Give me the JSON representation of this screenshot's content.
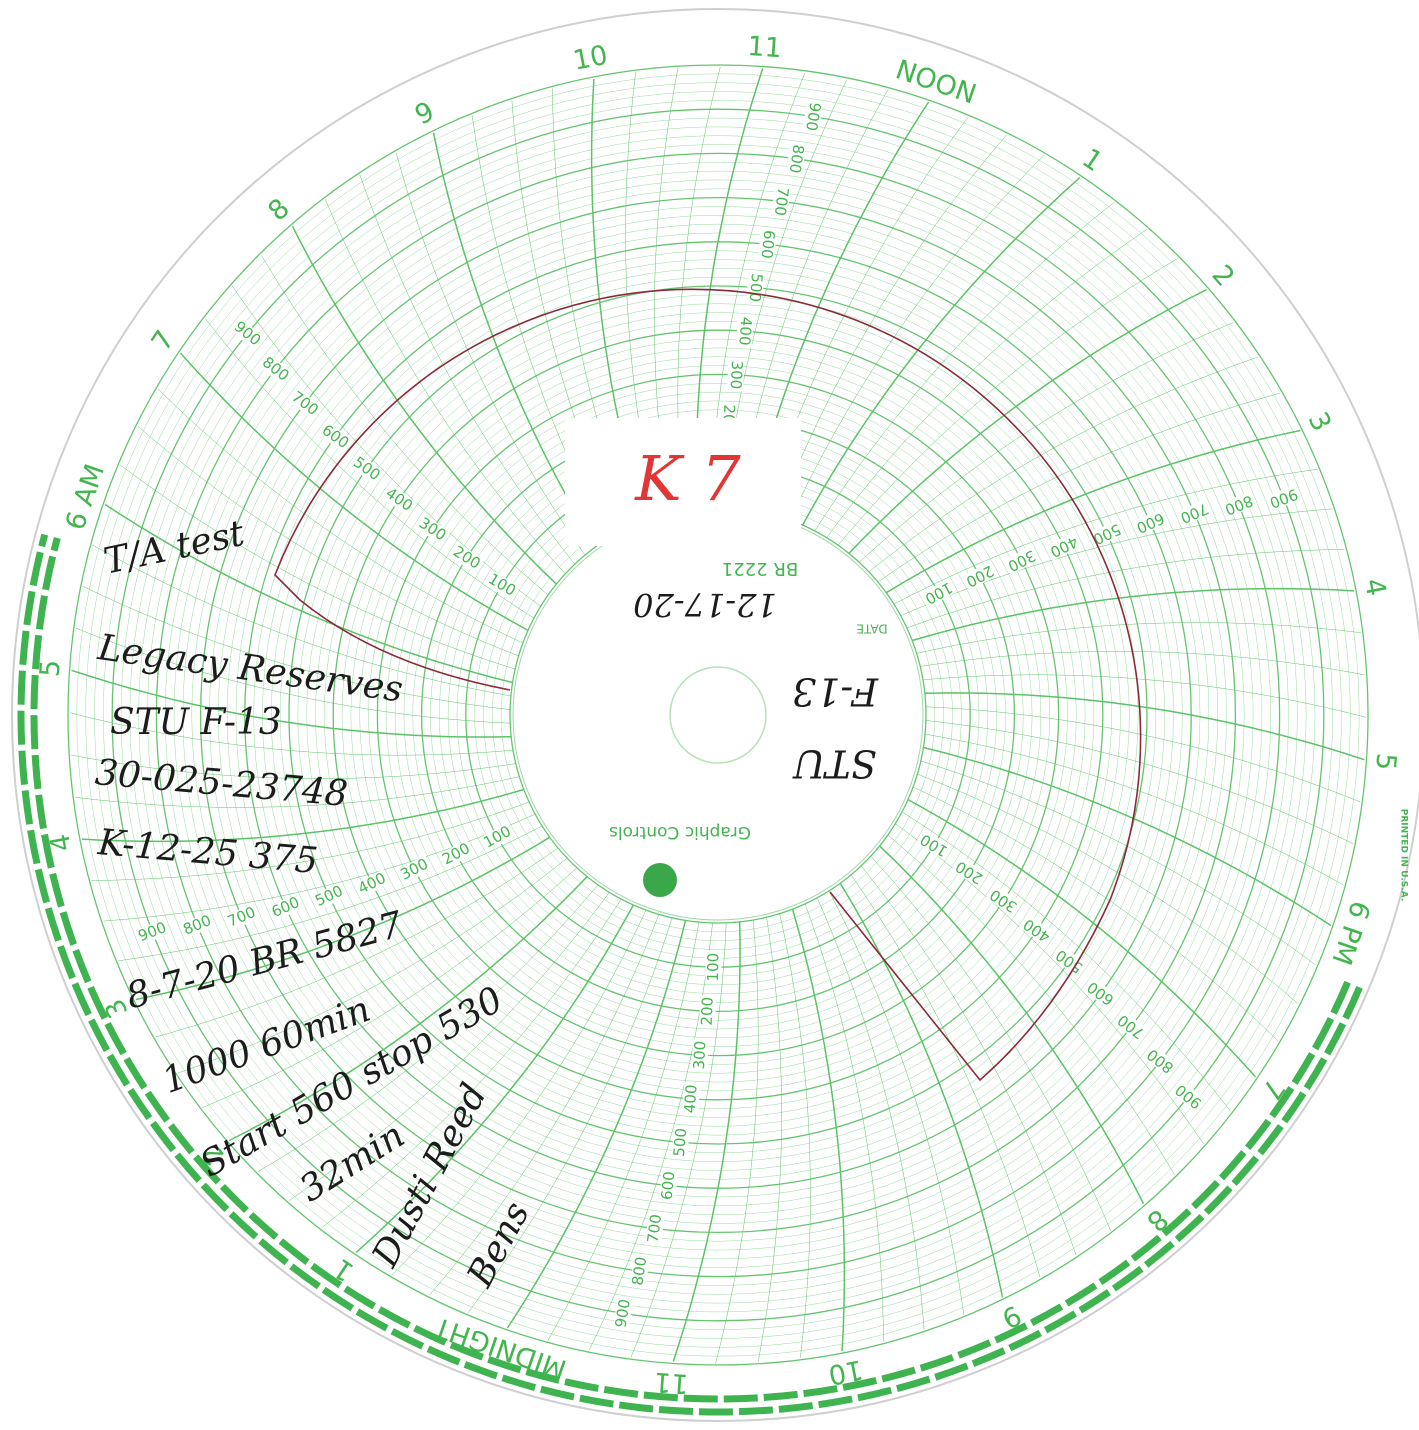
{
  "dial": {
    "hours": [
      "NOON",
      "1",
      "2",
      "3",
      "4",
      "5",
      "6 PM",
      "7",
      "8",
      "9",
      "10",
      "11",
      "MIDNIGHT",
      "1",
      "2",
      "3",
      "4",
      "5",
      "6 AM",
      "7",
      "8",
      "9",
      "10",
      "11"
    ],
    "scale": [
      100,
      200,
      300,
      400,
      500,
      600,
      700,
      800,
      900
    ]
  },
  "center": {
    "stamp": "K 7",
    "form": "BR 2221",
    "date_label": "DATE",
    "date": "12-17-20",
    "well": "F-13",
    "lease": "STU",
    "maker": "Graphic Controls"
  },
  "imprint": "PRINTED IN U.S.A.",
  "notes": [
    "T/A test",
    "Legacy Reserves",
    "STU F-13",
    "30-025-23748",
    "K-12-25 375",
    "8-7-20 BR 5827",
    "1000 60min",
    "Start 560 stop 530",
    "32min",
    "Dusti Reed",
    "Bens"
  ]
}
